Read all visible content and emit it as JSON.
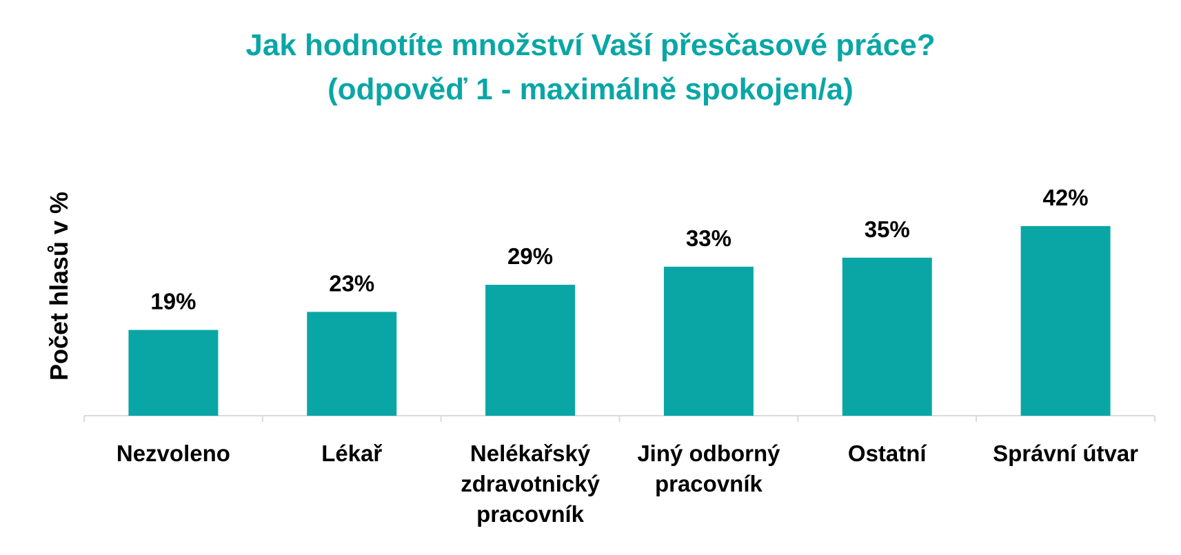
{
  "chart_data": {
    "type": "bar",
    "title": [
      "Jak hodnotíte množství Vaší přesčasové práce?",
      "(odpověď 1 - maximálně spokojen/a)"
    ],
    "ylabel": "Počet hlasů v %",
    "xlabel": "",
    "categories": [
      [
        "Nezvoleno"
      ],
      [
        "Lékař"
      ],
      [
        "Nelékařský",
        "zdravotnický",
        "pracovník"
      ],
      [
        "Jiný odborný",
        "pracovník"
      ],
      [
        "Ostatní"
      ],
      [
        "Správní útvar"
      ]
    ],
    "values": [
      19,
      23,
      29,
      33,
      35,
      42
    ],
    "data_labels": [
      "19%",
      "23%",
      "29%",
      "33%",
      "35%",
      "42%"
    ],
    "ylim": [
      0,
      50
    ],
    "grid": false,
    "legend": "none",
    "colors": {
      "bar": "#0aa6a6",
      "title": "#0aa6a6",
      "axis": "#d9d9d9"
    }
  }
}
